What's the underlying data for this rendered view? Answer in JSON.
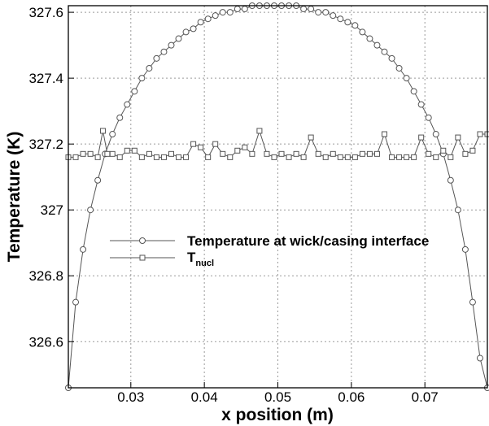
{
  "chart_data": {
    "type": "line",
    "title": "",
    "xlabel": "x position (m)",
    "ylabel": "Temperature (K)",
    "xlim": [
      0.0215,
      0.0785
    ],
    "ylim": [
      326.46,
      327.62
    ],
    "grid": true,
    "legend_placement": "center-left",
    "x_ticks": [
      0.03,
      0.04,
      0.05,
      0.06,
      0.07
    ],
    "x_tick_labels": [
      "0.03",
      "0.04",
      "0.05",
      "0.06",
      "0.07"
    ],
    "y_ticks": [
      326.6,
      326.8,
      327.0,
      327.2,
      327.4,
      327.6
    ],
    "y_tick_labels": [
      "326.6",
      "326.8",
      "327",
      "327.2",
      "327.4",
      "327.6"
    ],
    "series": [
      {
        "name": "Temperature at wick/casing interface",
        "marker": "circle",
        "x": [
          0.0215,
          0.0225,
          0.0235,
          0.0245,
          0.0255,
          0.0265,
          0.0275,
          0.0285,
          0.0295,
          0.0305,
          0.0315,
          0.0325,
          0.0335,
          0.0345,
          0.0355,
          0.0365,
          0.0375,
          0.0385,
          0.0395,
          0.0405,
          0.0415,
          0.0425,
          0.0435,
          0.0445,
          0.0455,
          0.0465,
          0.0475,
          0.0485,
          0.0495,
          0.0505,
          0.0515,
          0.0525,
          0.0535,
          0.0545,
          0.0555,
          0.0565,
          0.0575,
          0.0585,
          0.0595,
          0.0605,
          0.0615,
          0.0625,
          0.0635,
          0.0645,
          0.0655,
          0.0665,
          0.0675,
          0.0685,
          0.0695,
          0.0705,
          0.0715,
          0.0725,
          0.0735,
          0.0745,
          0.0755,
          0.0765,
          0.0775,
          0.0785
        ],
        "values": [
          326.46,
          326.72,
          326.88,
          327.0,
          327.09,
          327.17,
          327.23,
          327.28,
          327.32,
          327.36,
          327.4,
          327.43,
          327.46,
          327.48,
          327.5,
          327.52,
          327.54,
          327.55,
          327.57,
          327.58,
          327.59,
          327.6,
          327.6,
          327.61,
          327.61,
          327.62,
          327.62,
          327.62,
          327.62,
          327.62,
          327.62,
          327.62,
          327.61,
          327.61,
          327.6,
          327.6,
          327.59,
          327.58,
          327.57,
          327.56,
          327.54,
          327.52,
          327.5,
          327.48,
          327.46,
          327.43,
          327.4,
          327.36,
          327.32,
          327.28,
          327.23,
          327.17,
          327.09,
          327.0,
          326.88,
          326.72,
          326.55,
          326.46
        ]
      },
      {
        "name": "T",
        "name_subscript": "nucl",
        "marker": "square",
        "x": [
          0.0215,
          0.0225,
          0.0235,
          0.0245,
          0.0255,
          0.0262,
          0.0268,
          0.0275,
          0.0285,
          0.0295,
          0.0305,
          0.0315,
          0.0325,
          0.0335,
          0.0345,
          0.0355,
          0.0365,
          0.0375,
          0.0385,
          0.0395,
          0.0405,
          0.0415,
          0.0425,
          0.0435,
          0.0445,
          0.0455,
          0.0465,
          0.0475,
          0.0485,
          0.0495,
          0.0505,
          0.0515,
          0.0525,
          0.0535,
          0.0545,
          0.0555,
          0.0565,
          0.0575,
          0.0585,
          0.0595,
          0.0605,
          0.0615,
          0.0625,
          0.0635,
          0.0645,
          0.0655,
          0.0665,
          0.0675,
          0.0685,
          0.0695,
          0.0705,
          0.0715,
          0.0725,
          0.0735,
          0.0745,
          0.0755,
          0.0765,
          0.0775,
          0.0785
        ],
        "values": [
          327.16,
          327.16,
          327.17,
          327.17,
          327.16,
          327.24,
          327.17,
          327.17,
          327.16,
          327.18,
          327.18,
          327.16,
          327.17,
          327.16,
          327.16,
          327.17,
          327.16,
          327.16,
          327.2,
          327.19,
          327.16,
          327.2,
          327.17,
          327.16,
          327.18,
          327.19,
          327.17,
          327.24,
          327.17,
          327.16,
          327.17,
          327.16,
          327.17,
          327.16,
          327.22,
          327.17,
          327.16,
          327.17,
          327.16,
          327.16,
          327.16,
          327.17,
          327.17,
          327.17,
          327.23,
          327.16,
          327.16,
          327.16,
          327.16,
          327.22,
          327.17,
          327.16,
          327.18,
          327.16,
          327.22,
          327.17,
          327.18,
          327.23,
          327.23
        ]
      }
    ]
  }
}
